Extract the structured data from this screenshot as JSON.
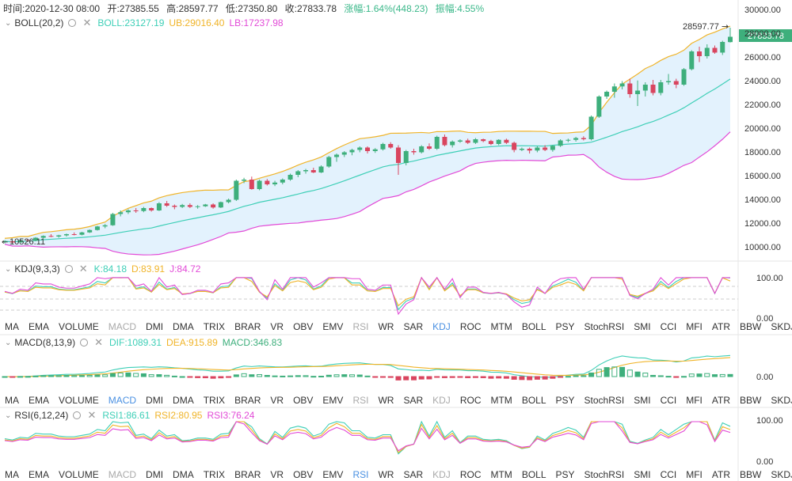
{
  "infobar": {
    "time": "时间:2020-12-30 08:00",
    "open": "开:27385.55",
    "high": "高:28597.77",
    "low": "低:27350.80",
    "close": "收:27833.78",
    "change": "涨幅:1.64%(448.23)",
    "amplitude": "振幅:4.55%"
  },
  "boll": {
    "name": "BOLL(20,2)",
    "mid": "BOLL:23127.19",
    "ub": "UB:29016.40",
    "lb": "LB:17237.98",
    "colors": {
      "mid": "#3ecfb7",
      "ub": "#f0b429",
      "lb": "#e24ad7"
    }
  },
  "price_axis": [
    "30000.00",
    "28000.00",
    "26000.00",
    "24000.00",
    "22000.00",
    "20000.00",
    "18000.00",
    "16000.00",
    "14000.00",
    "12000.00",
    "10000.00"
  ],
  "price_tag": "27833.78",
  "high_marker": "28597.77",
  "low_marker": "10526.11",
  "kdj": {
    "name": "KDJ(9,3,3)",
    "k": "K:84.18",
    "d": "D:83.91",
    "j": "J:84.72",
    "axis": [
      "100.00",
      "0.00"
    ]
  },
  "macd": {
    "name": "MACD(8,13,9)",
    "dif": "DIF:1089.31",
    "dea": "DEA:915.89",
    "macd": "MACD:346.83",
    "axis": [
      "0.00"
    ]
  },
  "rsi": {
    "name": "RSI(6,12,24)",
    "rsi1": "RSI1:86.61",
    "rsi2": "RSI2:80.95",
    "rsi3": "RSI3:76.24",
    "axis": [
      "100.00",
      "0.00"
    ]
  },
  "tabs": [
    "MA",
    "EMA",
    "VOLUME",
    "MACD",
    "DMI",
    "DMA",
    "TRIX",
    "BRAR",
    "VR",
    "OBV",
    "EMV",
    "RSI",
    "WR",
    "SAR",
    "KDJ",
    "ROC",
    "MTM",
    "BOLL",
    "PSY",
    "StochRSI",
    "SMI",
    "CCI",
    "MFI",
    "ATR",
    "BBW",
    "SKDJ"
  ],
  "colors": {
    "up": "#3eaf7c",
    "down": "#d9455f",
    "band_fill": "#e3f2fd",
    "active_tab": "#4a90e2"
  },
  "chart_data": {
    "type": "candlestick",
    "candles": [
      [
        10530,
        10700,
        10420,
        10600
      ],
      [
        10600,
        10650,
        10450,
        10500
      ],
      [
        10500,
        10750,
        10480,
        10700
      ],
      [
        10700,
        10800,
        10550,
        10650
      ],
      [
        10650,
        10950,
        10600,
        10900
      ],
      [
        10900,
        11100,
        10850,
        11050
      ],
      [
        11050,
        11200,
        10950,
        11000
      ],
      [
        11000,
        11150,
        10900,
        11100
      ],
      [
        11100,
        11250,
        11000,
        11200
      ],
      [
        11200,
        11350,
        11100,
        11150
      ],
      [
        11150,
        11400,
        11100,
        11350
      ],
      [
        11350,
        11600,
        11300,
        11550
      ],
      [
        11550,
        11900,
        11500,
        11850
      ],
      [
        11850,
        12050,
        11700,
        11950
      ],
      [
        11950,
        13000,
        11900,
        12900
      ],
      [
        12900,
        13200,
        12700,
        13050
      ],
      [
        13050,
        13300,
        12900,
        13200
      ],
      [
        13200,
        13400,
        13000,
        13150
      ],
      [
        13150,
        13500,
        13050,
        13400
      ],
      [
        13400,
        13450,
        13100,
        13200
      ],
      [
        13200,
        13900,
        13150,
        13800
      ],
      [
        13800,
        14000,
        13500,
        13600
      ],
      [
        13600,
        13700,
        13300,
        13500
      ],
      [
        13500,
        13750,
        13400,
        13650
      ],
      [
        13650,
        13800,
        13400,
        13500
      ],
      [
        13500,
        13650,
        13350,
        13550
      ],
      [
        13550,
        13750,
        13500,
        13700
      ],
      [
        13700,
        13800,
        13350,
        13450
      ],
      [
        13450,
        13950,
        13400,
        13900
      ],
      [
        13900,
        14200,
        13800,
        14100
      ],
      [
        14100,
        15800,
        14000,
        15700
      ],
      [
        15700,
        15950,
        15500,
        15800
      ],
      [
        15800,
        16050,
        14950,
        15000
      ],
      [
        15000,
        15800,
        14900,
        15700
      ],
      [
        15700,
        15850,
        15300,
        15400
      ],
      [
        15400,
        15700,
        15250,
        15550
      ],
      [
        15550,
        15900,
        15400,
        15800
      ],
      [
        15800,
        16300,
        15700,
        16200
      ],
      [
        16200,
        16600,
        16000,
        16500
      ],
      [
        16500,
        16700,
        16300,
        16600
      ],
      [
        16600,
        16800,
        16350,
        16400
      ],
      [
        16400,
        17000,
        16350,
        16900
      ],
      [
        16900,
        17800,
        16800,
        17700
      ],
      [
        17700,
        18000,
        17300,
        17900
      ],
      [
        17900,
        18200,
        17700,
        18100
      ],
      [
        18100,
        18400,
        17850,
        18300
      ],
      [
        18300,
        18600,
        18100,
        18500
      ],
      [
        18500,
        18600,
        18000,
        18200
      ],
      [
        18200,
        18450,
        18050,
        18350
      ],
      [
        18350,
        18900,
        18250,
        18800
      ],
      [
        18800,
        18950,
        18400,
        18500
      ],
      [
        18500,
        18700,
        16200,
        17200
      ],
      [
        17200,
        18300,
        17000,
        18200
      ],
      [
        18200,
        18400,
        17900,
        18100
      ],
      [
        18100,
        18700,
        18000,
        18600
      ],
      [
        18600,
        18850,
        18300,
        18400
      ],
      [
        18400,
        19500,
        18300,
        19400
      ],
      [
        19400,
        19600,
        18600,
        18700
      ],
      [
        18700,
        19100,
        18500,
        19000
      ],
      [
        19000,
        19200,
        18900,
        19100
      ],
      [
        19100,
        19250,
        18800,
        18900
      ],
      [
        18900,
        19300,
        18800,
        19200
      ],
      [
        19200,
        19250,
        18950,
        19050
      ],
      [
        19050,
        19150,
        18700,
        18800
      ],
      [
        18800,
        19200,
        18700,
        19150
      ],
      [
        19150,
        19250,
        18800,
        18900
      ],
      [
        18900,
        19000,
        18100,
        18300
      ],
      [
        18300,
        18500,
        18200,
        18400
      ],
      [
        18400,
        18500,
        18000,
        18250
      ],
      [
        18250,
        18600,
        18100,
        18500
      ],
      [
        18500,
        18700,
        18200,
        18300
      ],
      [
        18300,
        18700,
        18150,
        18650
      ],
      [
        18650,
        19200,
        18550,
        19100
      ],
      [
        19100,
        19250,
        18950,
        19150
      ],
      [
        19150,
        19400,
        19000,
        19300
      ],
      [
        19300,
        19450,
        19100,
        19200
      ],
      [
        19200,
        21200,
        19100,
        21100
      ],
      [
        21100,
        22900,
        21000,
        22800
      ],
      [
        22800,
        23300,
        22600,
        23200
      ],
      [
        23200,
        23900,
        22700,
        23650
      ],
      [
        23650,
        24100,
        23400,
        23900
      ],
      [
        23900,
        24300,
        22700,
        23000
      ],
      [
        23000,
        24150,
        22000,
        23300
      ],
      [
        23300,
        24000,
        22800,
        23800
      ],
      [
        23800,
        24200,
        22900,
        23100
      ],
      [
        23100,
        24200,
        22900,
        24000
      ],
      [
        24000,
        24700,
        23800,
        24100
      ],
      [
        24100,
        24300,
        23500,
        23800
      ],
      [
        23800,
        25200,
        23700,
        25100
      ],
      [
        25100,
        26700,
        25000,
        26600
      ],
      [
        26600,
        27000,
        25700,
        26200
      ],
      [
        26200,
        27200,
        26000,
        26900
      ],
      [
        26900,
        27100,
        26400,
        26500
      ],
      [
        26500,
        27500,
        26300,
        27400
      ],
      [
        27385.55,
        28597.77,
        27350.8,
        27833.78
      ]
    ]
  }
}
